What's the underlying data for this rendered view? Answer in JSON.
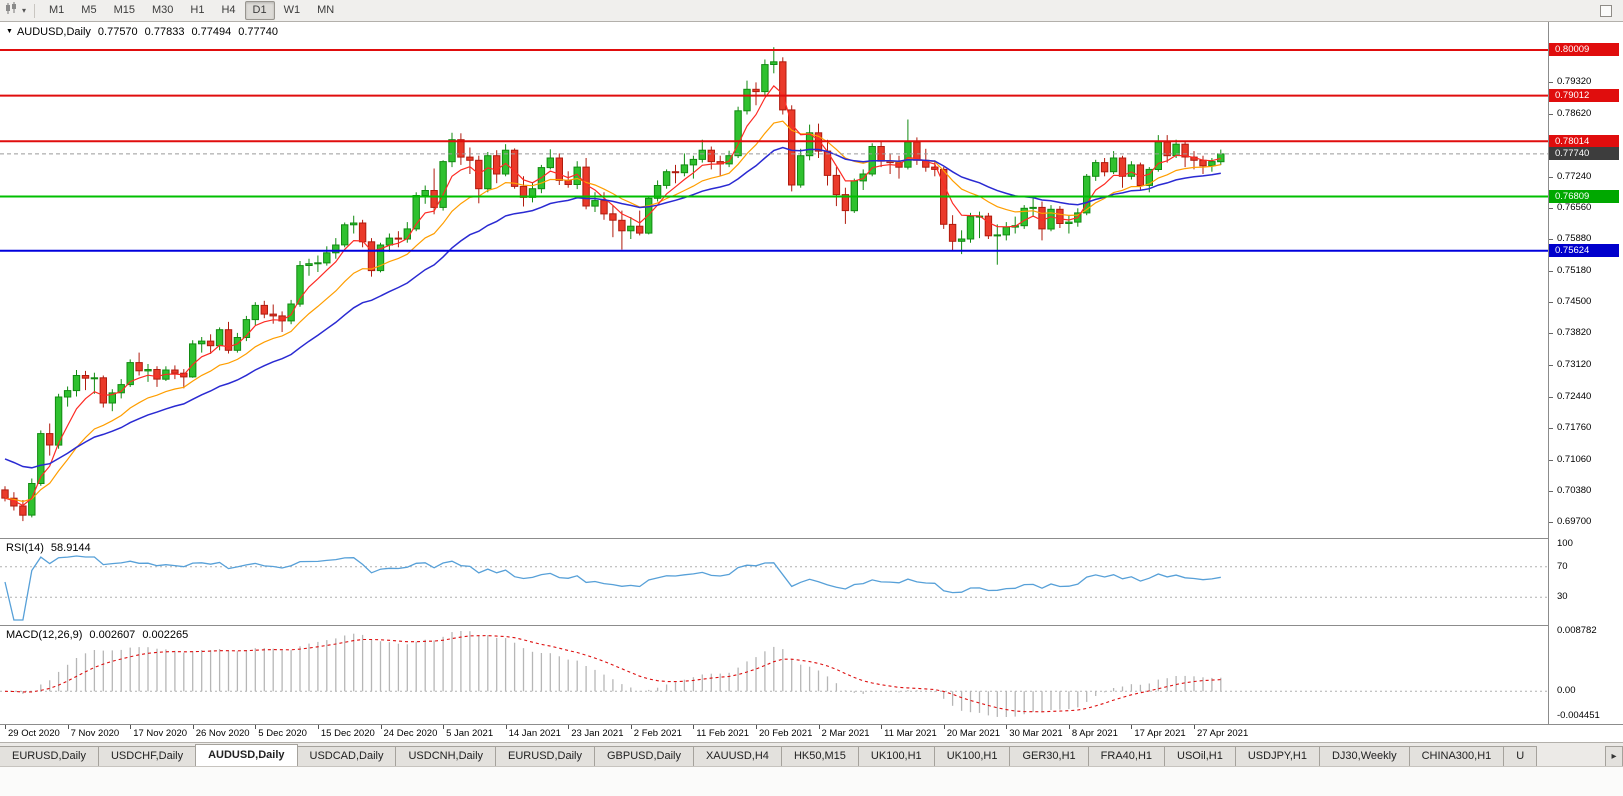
{
  "toolbar": {
    "chart_icon": "candlestick-chart-icon",
    "dropdown_icon": "chevron-down-icon",
    "timeframes": [
      "M1",
      "M5",
      "M15",
      "M30",
      "H1",
      "H4",
      "D1",
      "W1",
      "MN"
    ],
    "active_timeframe": "D1"
  },
  "chart": {
    "title": "AUDUSD,Daily",
    "ohlc": {
      "open": "0.77570",
      "high": "0.77833",
      "low": "0.77494",
      "close": "0.77740"
    },
    "colors": {
      "up": "#2fc12f",
      "up_border": "#118a11",
      "down": "#ea3a2a",
      "down_border": "#b01b0e",
      "ma_fast": "#fd2b24",
      "ma_mid": "#ff9e00",
      "ma_slow": "#2a2ad2",
      "current_price_line": "#9a9a9a"
    },
    "levels": [
      {
        "label": "0.80009",
        "value": 0.80009,
        "color": "#e00d0d",
        "badge": "#e00d0d",
        "style": "solid"
      },
      {
        "label": "0.79012",
        "value": 0.79012,
        "color": "#e00d0d",
        "badge": "#e00d0d",
        "style": "solid"
      },
      {
        "label": "0.78014",
        "value": 0.78014,
        "color": "#e00d0d",
        "badge": "#e00d0d",
        "style": "solid"
      },
      {
        "label": "0.77740",
        "value": 0.7774,
        "color": "#9a9a9a",
        "badge": "#3d3d3d",
        "style": "dashed"
      },
      {
        "label": "0.76809",
        "value": 0.76809,
        "color": "#00bf00",
        "badge": "#00a800",
        "style": "solid"
      },
      {
        "label": "0.75624",
        "value": 0.75624,
        "color": "#0000dd",
        "badge": "#0000cc",
        "style": "solid"
      }
    ],
    "price_axis_labels": [
      "0.79320",
      "0.78620",
      "0.77240",
      "0.76560",
      "0.75880",
      "0.75180",
      "0.74500",
      "0.73820",
      "0.73120",
      "0.72440",
      "0.71760",
      "0.71060",
      "0.70380",
      "0.69700"
    ],
    "date_axis_labels": [
      "29 Oct 2020",
      "7 Nov 2020",
      "17 Nov 2020",
      "26 Nov 2020",
      "5 Dec 2020",
      "15 Dec 2020",
      "24 Dec 2020",
      "5 Jan 2021",
      "14 Jan 2021",
      "23 Jan 2021",
      "2 Feb 2021",
      "11 Feb 2021",
      "20 Feb 2021",
      "2 Mar 2021",
      "11 Mar 2021",
      "20 Mar 2021",
      "30 Mar 2021",
      "8 Apr 2021",
      "17 Apr 2021",
      "27 Apr 2021"
    ]
  },
  "indicators": {
    "rsi": {
      "label": "RSI(14)",
      "value": "58.9144",
      "color": "#57a0d8",
      "axis_labels": [
        "100",
        "70",
        "30"
      ],
      "guide_levels": [
        70,
        30
      ]
    },
    "macd": {
      "label": "MACD(12,26,9)",
      "value_main": "0.002607",
      "value_signal": "0.002265",
      "histogram_color": "#b6b6b6",
      "signal_color": "#dd0f0f",
      "axis_top_label": "0.008782",
      "axis_zero_label": "0.00",
      "axis_bottom_label": "-0.004451"
    }
  },
  "chart_data": {
    "type": "candlestick",
    "symbol": "AUDUSD",
    "period": "Daily",
    "ohlc_order": [
      "open",
      "high",
      "low",
      "close"
    ],
    "candles": [
      [
        0.704,
        0.7048,
        0.7015,
        0.7022
      ],
      [
        0.7022,
        0.7035,
        0.6995,
        0.7005
      ],
      [
        0.7005,
        0.7018,
        0.6972,
        0.6985
      ],
      [
        0.6985,
        0.7065,
        0.698,
        0.7054
      ],
      [
        0.7054,
        0.717,
        0.7049,
        0.7163
      ],
      [
        0.7163,
        0.7185,
        0.7115,
        0.7138
      ],
      [
        0.7138,
        0.725,
        0.713,
        0.7243
      ],
      [
        0.7243,
        0.7266,
        0.7222,
        0.7257
      ],
      [
        0.7257,
        0.7302,
        0.7244,
        0.729
      ],
      [
        0.729,
        0.73,
        0.7258,
        0.7284
      ],
      [
        0.7284,
        0.7296,
        0.725,
        0.7285
      ],
      [
        0.7285,
        0.729,
        0.722,
        0.723
      ],
      [
        0.723,
        0.726,
        0.7212,
        0.7252
      ],
      [
        0.7252,
        0.7282,
        0.724,
        0.727
      ],
      [
        0.727,
        0.7325,
        0.7265,
        0.7318
      ],
      [
        0.7318,
        0.734,
        0.729,
        0.73
      ],
      [
        0.73,
        0.7315,
        0.7276,
        0.7303
      ],
      [
        0.7303,
        0.731,
        0.7265,
        0.7282
      ],
      [
        0.7282,
        0.731,
        0.7278,
        0.7302
      ],
      [
        0.7302,
        0.7312,
        0.7282,
        0.7295
      ],
      [
        0.7295,
        0.7304,
        0.7262,
        0.7287
      ],
      [
        0.7287,
        0.7367,
        0.7285,
        0.7359
      ],
      [
        0.7359,
        0.7374,
        0.734,
        0.7365
      ],
      [
        0.7365,
        0.738,
        0.7337,
        0.7355
      ],
      [
        0.7355,
        0.7395,
        0.7345,
        0.739
      ],
      [
        0.739,
        0.7407,
        0.7338,
        0.7345
      ],
      [
        0.7345,
        0.7383,
        0.734,
        0.7373
      ],
      [
        0.7373,
        0.742,
        0.7365,
        0.7412
      ],
      [
        0.7412,
        0.745,
        0.74,
        0.7443
      ],
      [
        0.7443,
        0.7453,
        0.7415,
        0.7424
      ],
      [
        0.7424,
        0.7445,
        0.7403,
        0.742
      ],
      [
        0.742,
        0.743,
        0.7385,
        0.7409
      ],
      [
        0.7409,
        0.7455,
        0.7402,
        0.7446
      ],
      [
        0.7446,
        0.754,
        0.744,
        0.753
      ],
      [
        0.753,
        0.7545,
        0.7508,
        0.7534
      ],
      [
        0.7534,
        0.7552,
        0.7516,
        0.7536
      ],
      [
        0.7536,
        0.7572,
        0.753,
        0.7558
      ],
      [
        0.7558,
        0.759,
        0.7545,
        0.7575
      ],
      [
        0.7575,
        0.7624,
        0.757,
        0.7619
      ],
      [
        0.7619,
        0.7639,
        0.76,
        0.7623
      ],
      [
        0.7623,
        0.763,
        0.757,
        0.7582
      ],
      [
        0.7582,
        0.759,
        0.7506,
        0.7519
      ],
      [
        0.7519,
        0.758,
        0.7515,
        0.7575
      ],
      [
        0.7575,
        0.76,
        0.756,
        0.759
      ],
      [
        0.759,
        0.7605,
        0.757,
        0.7588
      ],
      [
        0.7588,
        0.7625,
        0.758,
        0.761
      ],
      [
        0.761,
        0.769,
        0.7605,
        0.7683
      ],
      [
        0.7683,
        0.7705,
        0.7665,
        0.7694
      ],
      [
        0.7694,
        0.7742,
        0.7642,
        0.7657
      ],
      [
        0.7657,
        0.776,
        0.765,
        0.7757
      ],
      [
        0.7757,
        0.782,
        0.7745,
        0.7805
      ],
      [
        0.7805,
        0.7819,
        0.775,
        0.7767
      ],
      [
        0.7767,
        0.7788,
        0.773,
        0.776
      ],
      [
        0.776,
        0.777,
        0.7666,
        0.7698
      ],
      [
        0.7698,
        0.7778,
        0.769,
        0.777
      ],
      [
        0.777,
        0.7782,
        0.771,
        0.773
      ],
      [
        0.773,
        0.7795,
        0.7725,
        0.7782
      ],
      [
        0.7782,
        0.7786,
        0.7698,
        0.7703
      ],
      [
        0.7703,
        0.7725,
        0.7659,
        0.7679
      ],
      [
        0.7679,
        0.7712,
        0.7668,
        0.7698
      ],
      [
        0.7698,
        0.775,
        0.7688,
        0.7744
      ],
      [
        0.7744,
        0.7784,
        0.774,
        0.7765
      ],
      [
        0.7765,
        0.7775,
        0.7706,
        0.7716
      ],
      [
        0.7716,
        0.7736,
        0.77,
        0.7707
      ],
      [
        0.7707,
        0.7758,
        0.7697,
        0.7745
      ],
      [
        0.7745,
        0.7765,
        0.7653,
        0.766
      ],
      [
        0.766,
        0.769,
        0.7647,
        0.7672
      ],
      [
        0.7672,
        0.769,
        0.763,
        0.7643
      ],
      [
        0.7643,
        0.7662,
        0.7592,
        0.7629
      ],
      [
        0.7629,
        0.765,
        0.7565,
        0.7606
      ],
      [
        0.7606,
        0.7636,
        0.7588,
        0.7616
      ],
      [
        0.7616,
        0.765,
        0.7596,
        0.7601
      ],
      [
        0.7601,
        0.7682,
        0.7598,
        0.7677
      ],
      [
        0.7677,
        0.7716,
        0.767,
        0.7705
      ],
      [
        0.7705,
        0.774,
        0.7698,
        0.7735
      ],
      [
        0.7735,
        0.775,
        0.771,
        0.7733
      ],
      [
        0.7733,
        0.7775,
        0.7725,
        0.775
      ],
      [
        0.775,
        0.777,
        0.772,
        0.7762
      ],
      [
        0.7762,
        0.7805,
        0.7755,
        0.7782
      ],
      [
        0.7782,
        0.779,
        0.774,
        0.7757
      ],
      [
        0.7757,
        0.777,
        0.7725,
        0.7752
      ],
      [
        0.7752,
        0.7781,
        0.7745,
        0.777
      ],
      [
        0.777,
        0.7877,
        0.7765,
        0.7868
      ],
      [
        0.7868,
        0.7934,
        0.786,
        0.7915
      ],
      [
        0.7915,
        0.793,
        0.788,
        0.791
      ],
      [
        0.791,
        0.798,
        0.79,
        0.7969
      ],
      [
        0.7969,
        0.8007,
        0.795,
        0.7975
      ],
      [
        0.7975,
        0.7985,
        0.786,
        0.787
      ],
      [
        0.787,
        0.788,
        0.7692,
        0.7706
      ],
      [
        0.7706,
        0.7785,
        0.77,
        0.777
      ],
      [
        0.777,
        0.7838,
        0.776,
        0.782
      ],
      [
        0.782,
        0.784,
        0.7765,
        0.778
      ],
      [
        0.778,
        0.7805,
        0.7705,
        0.7727
      ],
      [
        0.7727,
        0.7745,
        0.766,
        0.7685
      ],
      [
        0.7685,
        0.77,
        0.7621,
        0.765
      ],
      [
        0.765,
        0.772,
        0.7645,
        0.7715
      ],
      [
        0.7715,
        0.774,
        0.7695,
        0.773
      ],
      [
        0.773,
        0.7797,
        0.7725,
        0.779
      ],
      [
        0.779,
        0.78,
        0.7745,
        0.7758
      ],
      [
        0.7758,
        0.7775,
        0.773,
        0.7755
      ],
      [
        0.7755,
        0.777,
        0.772,
        0.7745
      ],
      [
        0.7745,
        0.7849,
        0.774,
        0.78
      ],
      [
        0.78,
        0.781,
        0.775,
        0.776
      ],
      [
        0.776,
        0.7785,
        0.7735,
        0.7745
      ],
      [
        0.7745,
        0.776,
        0.7725,
        0.774
      ],
      [
        0.774,
        0.7745,
        0.761,
        0.762
      ],
      [
        0.762,
        0.764,
        0.7562,
        0.7583
      ],
      [
        0.7583,
        0.7607,
        0.7555,
        0.7588
      ],
      [
        0.7588,
        0.7645,
        0.758,
        0.7637
      ],
      [
        0.7637,
        0.7648,
        0.759,
        0.7638
      ],
      [
        0.7638,
        0.7645,
        0.7588,
        0.7595
      ],
      [
        0.7595,
        0.762,
        0.7532,
        0.7597
      ],
      [
        0.7597,
        0.7625,
        0.7585,
        0.7614
      ],
      [
        0.7614,
        0.7637,
        0.76,
        0.7617
      ],
      [
        0.7617,
        0.7662,
        0.761,
        0.7655
      ],
      [
        0.7655,
        0.7677,
        0.7637,
        0.7657
      ],
      [
        0.7657,
        0.767,
        0.7585,
        0.761
      ],
      [
        0.761,
        0.7662,
        0.7605,
        0.7653
      ],
      [
        0.7653,
        0.766,
        0.7612,
        0.7622
      ],
      [
        0.7622,
        0.764,
        0.76,
        0.7625
      ],
      [
        0.7625,
        0.7655,
        0.7615,
        0.7645
      ],
      [
        0.7645,
        0.773,
        0.764,
        0.7725
      ],
      [
        0.7725,
        0.7761,
        0.7715,
        0.7755
      ],
      [
        0.7755,
        0.7765,
        0.7725,
        0.7735
      ],
      [
        0.7735,
        0.778,
        0.773,
        0.7765
      ],
      [
        0.7765,
        0.777,
        0.77,
        0.7725
      ],
      [
        0.7725,
        0.7758,
        0.7718,
        0.775
      ],
      [
        0.775,
        0.7755,
        0.7695,
        0.7705
      ],
      [
        0.7705,
        0.7745,
        0.769,
        0.774
      ],
      [
        0.774,
        0.7815,
        0.7735,
        0.78
      ],
      [
        0.78,
        0.7815,
        0.7755,
        0.777
      ],
      [
        0.777,
        0.7805,
        0.7765,
        0.7795
      ],
      [
        0.7795,
        0.78,
        0.7745,
        0.7767
      ],
      [
        0.7767,
        0.778,
        0.774,
        0.776
      ],
      [
        0.776,
        0.777,
        0.773,
        0.7748
      ],
      [
        0.7748,
        0.7765,
        0.7735,
        0.7757
      ],
      [
        0.7757,
        0.77833,
        0.77494,
        0.7774
      ]
    ]
  },
  "tabs": {
    "items": [
      "EURUSD,Daily",
      "USDCHF,Daily",
      "AUDUSD,Daily",
      "USDCAD,Daily",
      "USDCNH,Daily",
      "EURUSD,Daily",
      "GBPUSD,Daily",
      "XAUUSD,H4",
      "HK50,M15",
      "UK100,H1",
      "UK100,H1",
      "GER30,H1",
      "FRA40,H1",
      "USOil,H1",
      "USDJPY,H1",
      "DJ30,Weekly",
      "CHINA300,H1",
      "U"
    ],
    "active_index": 2,
    "scroll_right_icon": "chevron-right-icon"
  }
}
